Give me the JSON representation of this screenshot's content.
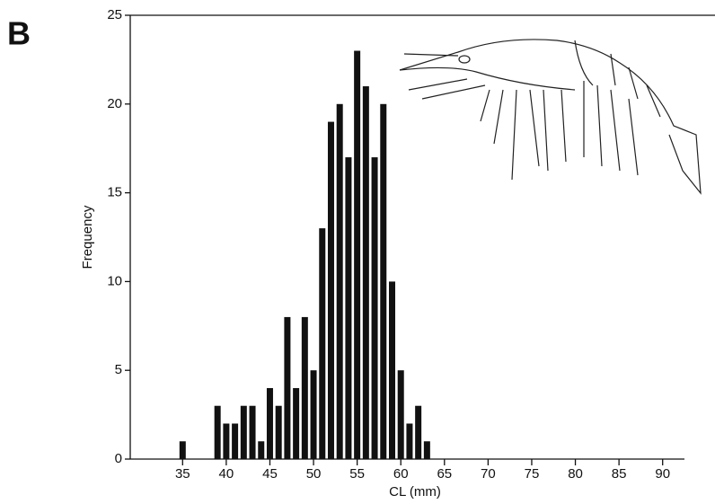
{
  "chart_data": {
    "type": "bar",
    "panel_label": "B",
    "x_label": "CL (mm)",
    "y_label": "Frequency",
    "x": [
      35,
      39,
      40,
      41,
      42,
      43,
      44,
      45,
      46,
      47,
      48,
      49,
      50,
      51,
      52,
      53,
      54,
      55,
      56,
      57,
      58,
      59,
      60,
      61,
      62,
      63
    ],
    "values": [
      1,
      3,
      2,
      2,
      3,
      3,
      1,
      4,
      3,
      8,
      4,
      8,
      5,
      13,
      19,
      20,
      17,
      23,
      21,
      17,
      20,
      10,
      5,
      2,
      3,
      1
    ],
    "color": "#111111",
    "xlim": [
      29,
      92.5
    ],
    "xticks": [
      35,
      40,
      45,
      50,
      55,
      60,
      65,
      70,
      75,
      80,
      85,
      90
    ],
    "ylim": [
      0,
      25
    ],
    "yticks": [
      0,
      5,
      10,
      15,
      20,
      25
    ]
  }
}
